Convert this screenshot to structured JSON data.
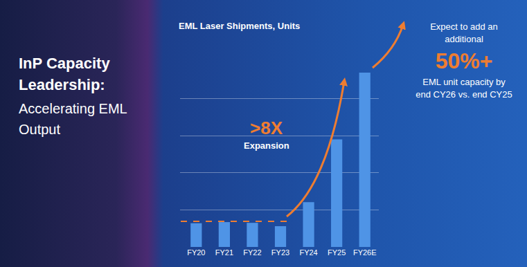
{
  "chart_data": {
    "type": "bar",
    "title": "EML Laser Shipments, Units",
    "categories": [
      "FY20",
      "FY21",
      "FY22",
      "FY23",
      "FY24",
      "FY25",
      "FY26E"
    ],
    "values": [
      0.64,
      0.67,
      0.65,
      0.56,
      1.21,
      2.9,
      4.7
    ],
    "color": "#4f94e6",
    "ylim": [
      0,
      5
    ],
    "yticks": [
      0,
      1,
      2,
      3,
      4,
      5
    ],
    "grid": true,
    "tick_labels": "x",
    "reference_line": {
      "value": 0.69,
      "line_style": "dash",
      "color": "#ee7d31"
    },
    "annotations": [
      {
        "text": ">8X"
      },
      {
        "text": "Expansion"
      }
    ]
  },
  "heading": {
    "title_lines": [
      "InP Capacity",
      "Leadership:"
    ],
    "subtitle_lines": [
      "Accelerating EML",
      "Output"
    ]
  },
  "callout": {
    "lines_above": [
      "Expect to add an",
      "additional"
    ],
    "figure": "50%+",
    "lines_below": [
      "EML unit capacity by",
      "end CY26 vs. end CY25"
    ]
  }
}
